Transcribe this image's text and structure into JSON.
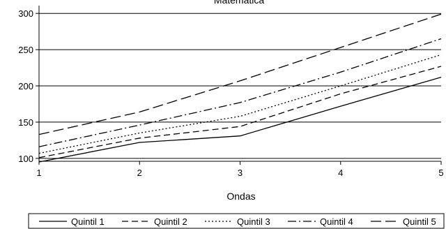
{
  "chart_data": {
    "type": "line",
    "title": "Matemática",
    "xlabel": "Ondas",
    "ylabel": "",
    "x": [
      1,
      2,
      3,
      4,
      5
    ],
    "xlim": [
      1,
      5
    ],
    "ylim": [
      96,
      305
    ],
    "xticks": [
      "1",
      "2",
      "3",
      "4",
      "5"
    ],
    "yticks": [
      100,
      150,
      200,
      250,
      300
    ],
    "grid": true,
    "legend_position": "bottom",
    "series": [
      {
        "name": "Quintil 1",
        "values": [
          95,
          122,
          131,
          172,
          212
        ],
        "dash": "solid"
      },
      {
        "name": "Quintil 2",
        "values": [
          101,
          128,
          144,
          189,
          227
        ],
        "dash": "dash"
      },
      {
        "name": "Quintil 3",
        "values": [
          107,
          135,
          158,
          200,
          243
        ],
        "dash": "dot"
      },
      {
        "name": "Quintil 4",
        "values": [
          116,
          146,
          177,
          219,
          265
        ],
        "dash": "dashdot"
      },
      {
        "name": "Quintil 5",
        "values": [
          133,
          164,
          207,
          253,
          299
        ],
        "dash": "longdash"
      }
    ],
    "line_color": "#000000"
  }
}
